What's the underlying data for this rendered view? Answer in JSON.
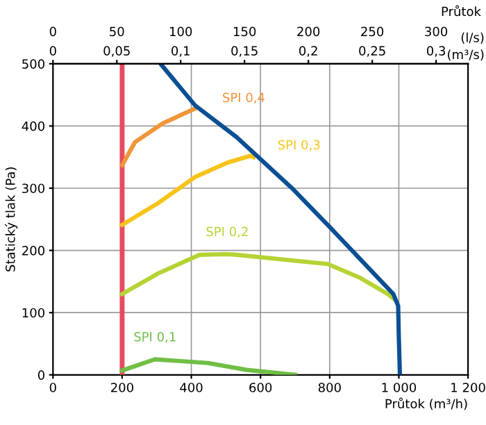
{
  "chart_data": {
    "type": "line",
    "xlabel": "Průtok (m³/h)",
    "ylabel": "Statický tlak (Pa)",
    "x2label": "(l/s)",
    "annotations": [
      "Průtok",
      "(m³/s)",
      "0",
      "0,05",
      "0,1",
      "0,15",
      "0,2",
      "0,25",
      "0,3"
    ],
    "xlim": [
      0,
      1200
    ],
    "xticks": [
      0,
      200,
      400,
      600,
      800,
      {
        "value": 1000,
        "label": "1 000"
      },
      {
        "value": 1200,
        "label": "1 200"
      }
    ],
    "ylim": [
      0,
      500
    ],
    "yticks": [
      0,
      100,
      200,
      300,
      400,
      500
    ],
    "x2lim": [
      0,
      325
    ],
    "x2ticks": [
      0,
      50,
      100,
      150,
      200,
      250,
      300
    ],
    "grid": true,
    "marker": "none",
    "line_style": "solid",
    "ref_lines": [
      {
        "axis": "x",
        "value": 200,
        "label": null,
        "color": "#e84a5f"
      }
    ],
    "series": [
      {
        "color": "#0a4f93",
        "x": [
          311,
          411,
          531,
          691,
          801,
          984,
          998,
          1000,
          1003
        ],
        "values": [
          500,
          433,
          382,
          300,
          237,
          130,
          111,
          60,
          0
        ]
      },
      {
        "name": "SPI 0,4",
        "color": "#f0953a",
        "x": [
          200,
          237,
          317,
          411
        ],
        "values": [
          337,
          374,
          404,
          428
        ]
      },
      {
        "name": "SPI 0,3",
        "color": "#f7c31a",
        "x": [
          200,
          304,
          411,
          504,
          571,
          580
        ],
        "values": [
          241,
          276,
          318,
          341,
          352,
          350
        ]
      },
      {
        "name": "SPI 0,2",
        "color": "#b5d334",
        "x": [
          200,
          304,
          424,
          504,
          531,
          795,
          888,
          968,
          990
        ],
        "values": [
          130,
          163,
          193,
          194,
          193,
          178,
          156,
          130,
          120
        ]
      },
      {
        "name": "SPI 0,1",
        "color": "#6fbf44",
        "x": [
          200,
          295,
          448,
          560,
          700
        ],
        "values": [
          7,
          25,
          19,
          8,
          0
        ]
      }
    ]
  }
}
